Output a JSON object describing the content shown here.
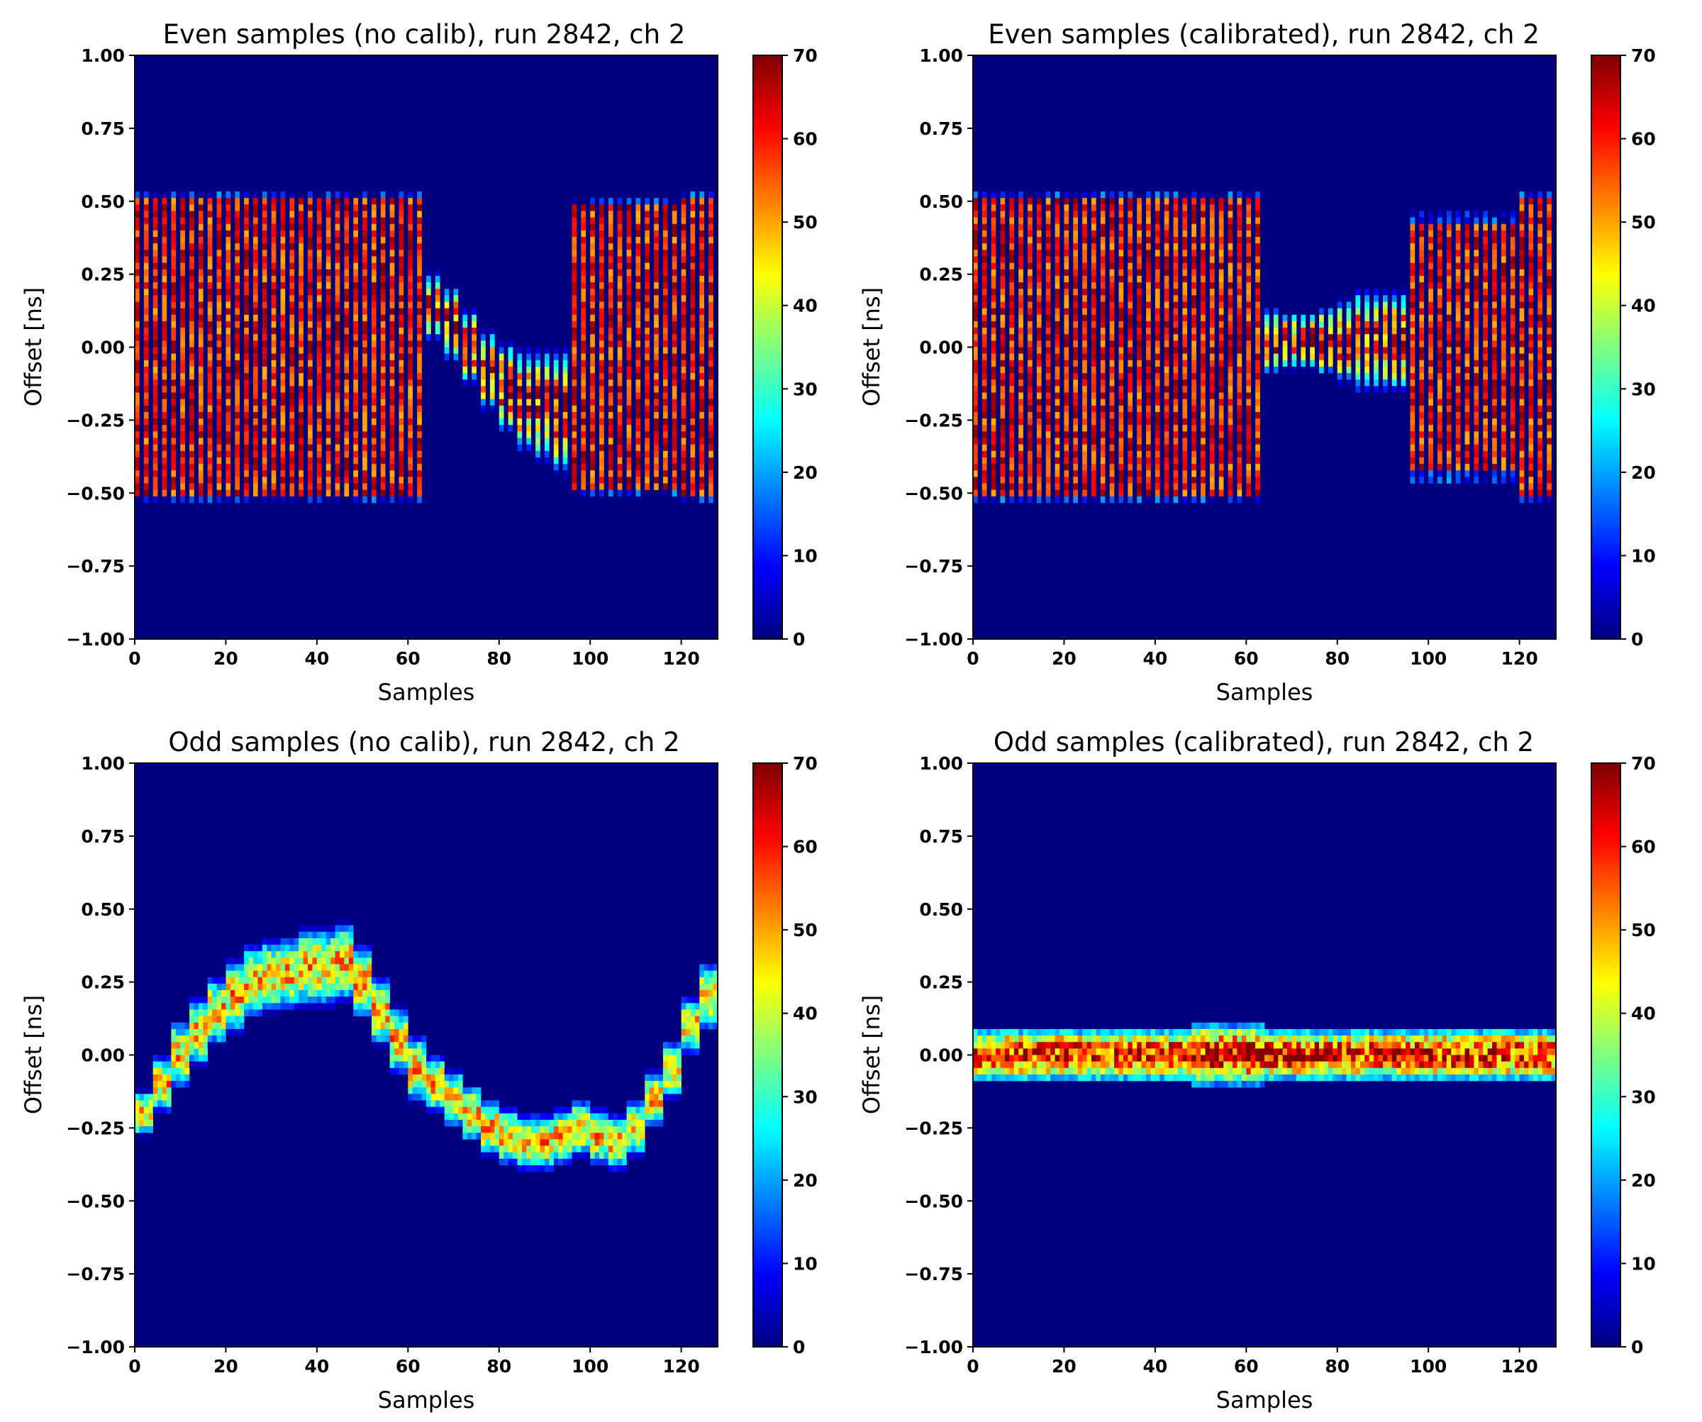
{
  "colormap": {
    "name": "jet",
    "stops": [
      "#00007f",
      "#0000ff",
      "#007fff",
      "#00ffff",
      "#7fff7f",
      "#ffff00",
      "#ff7f00",
      "#ff0000",
      "#7f0000"
    ]
  },
  "chart_data": [
    {
      "type": "heatmap",
      "title": "Even samples (no calib), run 2842, ch 2",
      "xlabel": "Samples",
      "ylabel": "Offset [ns]",
      "xlim": [
        0,
        128
      ],
      "ylim": [
        -1.0,
        1.0
      ],
      "xticks": [
        "0",
        "20",
        "40",
        "60",
        "80",
        "100",
        "120"
      ],
      "yticks": [
        "1.00",
        "0.75",
        "0.50",
        "0.25",
        "0.00",
        "−0.25",
        "−0.50",
        "−0.75",
        "−1.00"
      ],
      "colorbar": {
        "range": [
          0,
          70
        ],
        "ticks": [
          "70",
          "60",
          "50",
          "40",
          "30",
          "20",
          "10",
          "0"
        ]
      },
      "band_center": [
        0,
        0,
        0,
        0,
        0,
        0,
        0,
        0,
        0,
        0,
        0,
        0,
        0,
        0,
        0,
        0,
        0.14,
        0.08,
        0.0,
        -0.08,
        -0.14,
        -0.18,
        -0.2,
        -0.22,
        0.0,
        0.0,
        0.0,
        0.0,
        0.0,
        0.0,
        0.0,
        0.0
      ],
      "band_halfwidth": [
        0.5,
        0.5,
        0.5,
        0.5,
        0.5,
        0.5,
        0.5,
        0.5,
        0.5,
        0.5,
        0.5,
        0.5,
        0.5,
        0.5,
        0.5,
        0.5,
        0.12,
        0.13,
        0.13,
        0.14,
        0.16,
        0.18,
        0.2,
        0.22,
        0.48,
        0.48,
        0.48,
        0.48,
        0.48,
        0.48,
        0.5,
        0.5
      ],
      "peak": 70
    },
    {
      "type": "heatmap",
      "title": "Even samples (calibrated), run 2842, ch 2",
      "xlabel": "Samples",
      "ylabel": "Offset [ns]",
      "xlim": [
        0,
        128
      ],
      "ylim": [
        -1.0,
        1.0
      ],
      "xticks": [
        "0",
        "20",
        "40",
        "60",
        "80",
        "100",
        "120"
      ],
      "yticks": [
        "1.00",
        "0.75",
        "0.50",
        "0.25",
        "0.00",
        "−0.25",
        "−0.50",
        "−0.75",
        "−1.00"
      ],
      "colorbar": {
        "range": [
          0,
          70
        ],
        "ticks": [
          "70",
          "60",
          "50",
          "40",
          "30",
          "20",
          "10",
          "0"
        ]
      },
      "band_center": [
        0,
        0,
        0,
        0,
        0,
        0,
        0,
        0,
        0,
        0,
        0,
        0,
        0,
        0,
        0,
        0,
        0.02,
        0.02,
        0.02,
        0.02,
        0.02,
        0.02,
        0.02,
        0.02,
        0.0,
        0.0,
        0.0,
        0.0,
        0.0,
        0.0,
        0.0,
        0.0
      ],
      "band_halfwidth": [
        0.5,
        0.5,
        0.5,
        0.5,
        0.5,
        0.5,
        0.5,
        0.5,
        0.5,
        0.5,
        0.5,
        0.5,
        0.5,
        0.5,
        0.5,
        0.5,
        0.12,
        0.1,
        0.1,
        0.12,
        0.15,
        0.18,
        0.18,
        0.18,
        0.42,
        0.42,
        0.42,
        0.42,
        0.42,
        0.42,
        0.5,
        0.5
      ],
      "peak": 70
    },
    {
      "type": "heatmap",
      "title": "Odd samples (no calib), run 2842, ch 2",
      "xlabel": "Samples",
      "ylabel": "Offset [ns]",
      "xlim": [
        0,
        128
      ],
      "ylim": [
        -1.0,
        1.0
      ],
      "xticks": [
        "0",
        "20",
        "40",
        "60",
        "80",
        "100",
        "120"
      ],
      "yticks": [
        "1.00",
        "0.75",
        "0.50",
        "0.25",
        "0.00",
        "−0.25",
        "−0.50",
        "−0.75",
        "−1.00"
      ],
      "colorbar": {
        "range": [
          0,
          70
        ],
        "ticks": [
          "70",
          "60",
          "50",
          "40",
          "30",
          "20",
          "10",
          "0"
        ]
      },
      "band_center": [
        -0.2,
        -0.1,
        0.0,
        0.08,
        0.15,
        0.2,
        0.25,
        0.27,
        0.28,
        0.3,
        0.3,
        0.32,
        0.25,
        0.15,
        0.05,
        -0.05,
        -0.1,
        -0.15,
        -0.2,
        -0.25,
        -0.28,
        -0.3,
        -0.3,
        -0.28,
        -0.25,
        -0.28,
        -0.3,
        -0.25,
        -0.15,
        -0.05,
        0.1,
        0.2
      ],
      "band_halfwidth": [
        0.08,
        0.1,
        0.12,
        0.12,
        0.12,
        0.13,
        0.13,
        0.13,
        0.13,
        0.14,
        0.14,
        0.14,
        0.13,
        0.12,
        0.12,
        0.12,
        0.1,
        0.1,
        0.1,
        0.1,
        0.1,
        0.1,
        0.1,
        0.1,
        0.1,
        0.1,
        0.1,
        0.1,
        0.1,
        0.1,
        0.1,
        0.12
      ],
      "peak": 55
    },
    {
      "type": "heatmap",
      "title": "Odd samples (calibrated), run 2842, ch 2",
      "xlabel": "Samples",
      "ylabel": "Offset [ns]",
      "xlim": [
        0,
        128
      ],
      "ylim": [
        -1.0,
        1.0
      ],
      "xticks": [
        "0",
        "20",
        "40",
        "60",
        "80",
        "100",
        "120"
      ],
      "yticks": [
        "1.00",
        "0.75",
        "0.50",
        "0.25",
        "0.00",
        "−0.25",
        "−0.50",
        "−0.75",
        "−1.00"
      ],
      "colorbar": {
        "range": [
          0,
          70
        ],
        "ticks": [
          "70",
          "60",
          "50",
          "40",
          "30",
          "20",
          "10",
          "0"
        ]
      },
      "band_center": [
        0,
        0,
        0,
        0,
        0,
        0,
        0,
        0,
        0,
        0,
        0,
        0,
        0,
        0,
        0,
        0,
        0,
        0,
        0,
        0,
        0,
        0,
        0,
        0,
        0,
        0,
        0,
        0,
        0,
        0,
        0,
        0
      ],
      "band_halfwidth": [
        0.1,
        0.1,
        0.1,
        0.1,
        0.1,
        0.1,
        0.1,
        0.1,
        0.1,
        0.1,
        0.1,
        0.1,
        0.12,
        0.12,
        0.12,
        0.12,
        0.1,
        0.1,
        0.1,
        0.1,
        0.1,
        0.1,
        0.1,
        0.1,
        0.1,
        0.1,
        0.1,
        0.1,
        0.1,
        0.1,
        0.1,
        0.1
      ],
      "peak": 70
    }
  ]
}
